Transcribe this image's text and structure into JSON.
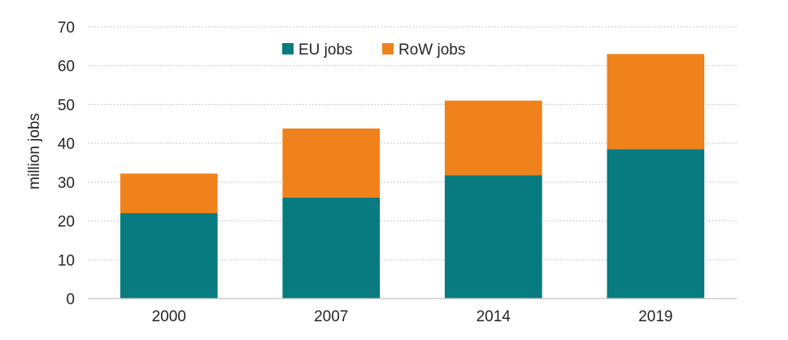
{
  "chart_data": {
    "type": "bar",
    "stacked": true,
    "categories": [
      "2000",
      "2007",
      "2014",
      "2019"
    ],
    "series": [
      {
        "name": "EU jobs",
        "color": "#077b80",
        "values": [
          22,
          26,
          31.8,
          38.5
        ]
      },
      {
        "name": "RoW jobs",
        "color": "#f0821c",
        "values": [
          10.2,
          17.8,
          19.2,
          24.5
        ]
      }
    ],
    "title": "",
    "xlabel": "",
    "ylabel": "million jobs",
    "ylim": [
      0,
      70
    ],
    "yticks": [
      0,
      10,
      20,
      30,
      40,
      50,
      60,
      70
    ],
    "grid": true,
    "legend_position": "top-center"
  }
}
